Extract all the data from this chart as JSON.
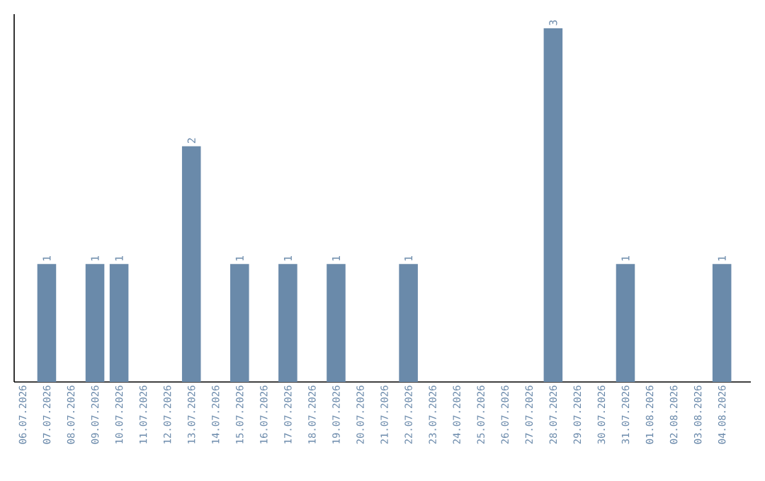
{
  "chart_data": {
    "type": "bar",
    "categories": [
      "06.07.2026",
      "07.07.2026",
      "08.07.2026",
      "09.07.2026",
      "10.07.2026",
      "11.07.2026",
      "12.07.2026",
      "13.07.2026",
      "14.07.2026",
      "15.07.2026",
      "16.07.2026",
      "17.07.2026",
      "18.07.2026",
      "19.07.2026",
      "20.07.2026",
      "21.07.2026",
      "22.07.2026",
      "23.07.2026",
      "24.07.2026",
      "25.07.2026",
      "26.07.2026",
      "27.07.2026",
      "28.07.2026",
      "29.07.2026",
      "30.07.2026",
      "31.07.2026",
      "01.08.2026",
      "02.08.2026",
      "03.08.2026",
      "04.08.2026"
    ],
    "values": [
      0,
      1,
      0,
      1,
      1,
      0,
      0,
      2,
      0,
      1,
      0,
      1,
      0,
      1,
      0,
      0,
      1,
      0,
      0,
      0,
      0,
      0,
      3,
      0,
      0,
      1,
      0,
      0,
      0,
      1
    ],
    "value_labels": [
      null,
      "1",
      null,
      "1",
      "1",
      null,
      null,
      "2",
      null,
      "1",
      null,
      "1",
      null,
      "1",
      null,
      null,
      "1",
      null,
      null,
      null,
      null,
      null,
      "3",
      null,
      null,
      "1",
      null,
      null,
      null,
      "1"
    ],
    "color": "#6a8aaa",
    "tick_labels": "x",
    "grid": false
  }
}
